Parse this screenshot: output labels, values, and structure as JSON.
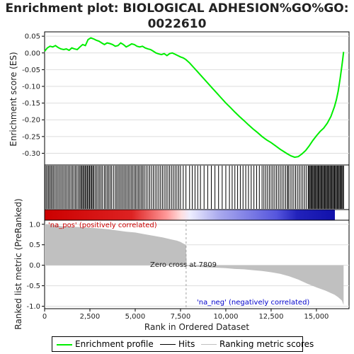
{
  "chart_data": {
    "type": "line",
    "title": "Enrichment plot: BIOLOGICAL ADHESION%GO%GO:\n0022610",
    "title_lines": [
      "Enrichment plot: BIOLOGICAL ADHESION%GO%GO:",
      "0022610"
    ],
    "colors": {
      "enrichment_line": "#00ee00",
      "hits": "#000000",
      "ranking_fill": "#c0c0c0",
      "zero_cross_line": "#a0a0a0",
      "pos_label": "#cc0000",
      "neg_label": "#0000cc",
      "heatmap_pos": "#dd0000",
      "heatmap_neg": "#0000cc"
    },
    "top_panel": {
      "ylabel": "Enrichment score (ES)",
      "ylim": [
        -0.335,
        0.063
      ],
      "yticks": [
        0.05,
        0.0,
        -0.05,
        -0.1,
        -0.15,
        -0.2,
        -0.25,
        -0.3
      ],
      "ytick_labels": [
        "0.05",
        "0.00",
        "-0.05",
        "-0.10",
        "-0.15",
        "-0.20",
        "-0.25",
        "-0.30"
      ],
      "series": [
        {
          "name": "Enrichment profile",
          "x": [
            0,
            150,
            300,
            450,
            600,
            750,
            900,
            1050,
            1200,
            1350,
            1500,
            1650,
            1800,
            1950,
            2100,
            2250,
            2400,
            2550,
            2700,
            2850,
            3000,
            3150,
            3300,
            3450,
            3600,
            3750,
            3900,
            4050,
            4200,
            4350,
            4500,
            4650,
            4800,
            4950,
            5100,
            5250,
            5400,
            5550,
            5700,
            5850,
            6000,
            6150,
            6300,
            6450,
            6600,
            6750,
            6900,
            7050,
            7200,
            7350,
            7500,
            7650,
            7800,
            8000,
            8250,
            8500,
            8750,
            9000,
            9250,
            9500,
            9750,
            10000,
            10250,
            10500,
            10750,
            11000,
            11250,
            11500,
            11750,
            12000,
            12250,
            12500,
            12750,
            13000,
            13200,
            13400,
            13600,
            13800,
            14000,
            14200,
            14400,
            14600,
            14800,
            15000,
            15200,
            15400,
            15600,
            15800,
            16000,
            16100,
            16200,
            16300,
            16400,
            16450,
            16500
          ],
          "y": [
            0.005,
            0.015,
            0.02,
            0.018,
            0.022,
            0.016,
            0.012,
            0.01,
            0.012,
            0.008,
            0.015,
            0.012,
            0.01,
            0.018,
            0.025,
            0.022,
            0.04,
            0.045,
            0.042,
            0.038,
            0.035,
            0.03,
            0.025,
            0.03,
            0.028,
            0.025,
            0.02,
            0.022,
            0.03,
            0.025,
            0.018,
            0.022,
            0.027,
            0.025,
            0.02,
            0.018,
            0.02,
            0.015,
            0.012,
            0.01,
            0.005,
            0.0,
            -0.003,
            -0.005,
            -0.002,
            -0.008,
            -0.002,
            0.0,
            -0.004,
            -0.008,
            -0.012,
            -0.015,
            -0.02,
            -0.03,
            -0.045,
            -0.06,
            -0.075,
            -0.09,
            -0.105,
            -0.12,
            -0.135,
            -0.15,
            -0.163,
            -0.177,
            -0.19,
            -0.202,
            -0.215,
            -0.227,
            -0.238,
            -0.25,
            -0.26,
            -0.268,
            -0.278,
            -0.288,
            -0.295,
            -0.302,
            -0.308,
            -0.312,
            -0.31,
            -0.302,
            -0.292,
            -0.278,
            -0.262,
            -0.248,
            -0.235,
            -0.225,
            -0.21,
            -0.19,
            -0.16,
            -0.14,
            -0.115,
            -0.08,
            -0.04,
            -0.02,
            0.003
          ]
        }
      ]
    },
    "hits_panel": {
      "legend_name": "Hits"
    },
    "bottom_panel": {
      "ylabel": "Ranked list metric (PreRanked)",
      "xlabel": "Rank in Ordered Dataset",
      "ylim": [
        -1.06,
        1.1
      ],
      "yticks": [
        1.0,
        0.5,
        0.0,
        -0.5,
        -1.0
      ],
      "ytick_labels": [
        "1.0",
        "0.5",
        "0.0",
        "-0.5",
        "-1.0"
      ],
      "xlim": [
        0,
        16800
      ],
      "xticks": [
        0,
        2500,
        5000,
        7500,
        10000,
        12500,
        15000
      ],
      "xtick_labels": [
        "0",
        "2,500",
        "5,000",
        "7,500",
        "10,000",
        "12,500",
        "15,000"
      ],
      "series": [
        {
          "name": "Ranking metric scores",
          "x": [
            0,
            500,
            1000,
            2000,
            3000,
            3500,
            4000,
            4500,
            5000,
            5500,
            6000,
            6500,
            7000,
            7300,
            7500,
            7700,
            7800,
            7850,
            8500,
            9000,
            9500,
            10000,
            10500,
            11000,
            11500,
            12000,
            12500,
            13000,
            13500,
            14000,
            14500,
            15000,
            15500,
            16000,
            16200,
            16400,
            16500
          ],
          "y": [
            1.0,
            0.98,
            0.95,
            0.93,
            0.9,
            0.88,
            0.85,
            0.82,
            0.8,
            0.76,
            0.72,
            0.68,
            0.63,
            0.6,
            0.57,
            0.52,
            0.5,
            -0.02,
            -0.04,
            -0.05,
            -0.06,
            -0.07,
            -0.09,
            -0.1,
            -0.12,
            -0.14,
            -0.17,
            -0.21,
            -0.27,
            -0.35,
            -0.45,
            -0.54,
            -0.62,
            -0.72,
            -0.78,
            -0.86,
            -0.97
          ]
        }
      ],
      "annotations": {
        "pos": "'na_pos' (positively correlated)",
        "neg": "'na_neg' (negatively correlated)",
        "zero_cross": "Zero cross at 7809",
        "zero_cross_x": 7809
      }
    },
    "hits": [
      10,
      80,
      150,
      220,
      290,
      360,
      430,
      500,
      580,
      660,
      740,
      820,
      900,
      980,
      1060,
      1140,
      1220,
      1300,
      1380,
      1460,
      1540,
      1620,
      1700,
      1780,
      1860,
      1940,
      2000,
      2060,
      2120,
      2180,
      2240,
      2300,
      2360,
      2420,
      2480,
      2540,
      2600,
      2660,
      2720,
      2800,
      2880,
      2960,
      3040,
      3120,
      3200,
      3300,
      3380,
      3460,
      3540,
      3620,
      3700,
      3800,
      3900,
      3980,
      4060,
      4140,
      4220,
      4300,
      4380,
      4460,
      4540,
      4620,
      4700,
      4780,
      4860,
      4940,
      5020,
      5100,
      5180,
      5260,
      5340,
      5420,
      5500,
      5600,
      5700,
      5800,
      5900,
      6000,
      6100,
      6200,
      6300,
      6400,
      6500,
      6600,
      6700,
      6800,
      6900,
      7000,
      7100,
      7200,
      7300,
      7400,
      7500,
      7650,
      7800,
      8000,
      8150,
      8300,
      8450,
      8600,
      8800,
      9000,
      9200,
      9400,
      9600,
      9800,
      10000,
      10200,
      10350,
      10500,
      10650,
      10800,
      10950,
      11100,
      11250,
      11400,
      11550,
      11700,
      11850,
      12000,
      12100,
      12200,
      12300,
      12400,
      12500,
      12600,
      12700,
      12800,
      12900,
      13000,
      13100,
      13200,
      13300,
      13400,
      13450,
      13550,
      13650,
      13750,
      13850,
      13950,
      14050,
      14150,
      14250,
      14350,
      14450,
      14550,
      14600,
      14650,
      14700,
      14750,
      14800,
      14850,
      14900,
      14950,
      15000,
      15050,
      15100,
      15150,
      15200,
      15250,
      15300,
      15350,
      15400,
      15450,
      15500,
      15550,
      15600,
      15650,
      15700,
      15750,
      15800,
      15850,
      15900,
      15950,
      16000,
      16050,
      16100,
      16150,
      16200,
      16250,
      16300,
      16350,
      16400,
      16450,
      16500
    ],
    "legend": [
      {
        "label": "Enrichment profile",
        "color": "#00ee00"
      },
      {
        "label": "Hits",
        "color": "#000000"
      },
      {
        "label": "Ranking metric scores",
        "color": "#c0c0c0"
      }
    ]
  }
}
